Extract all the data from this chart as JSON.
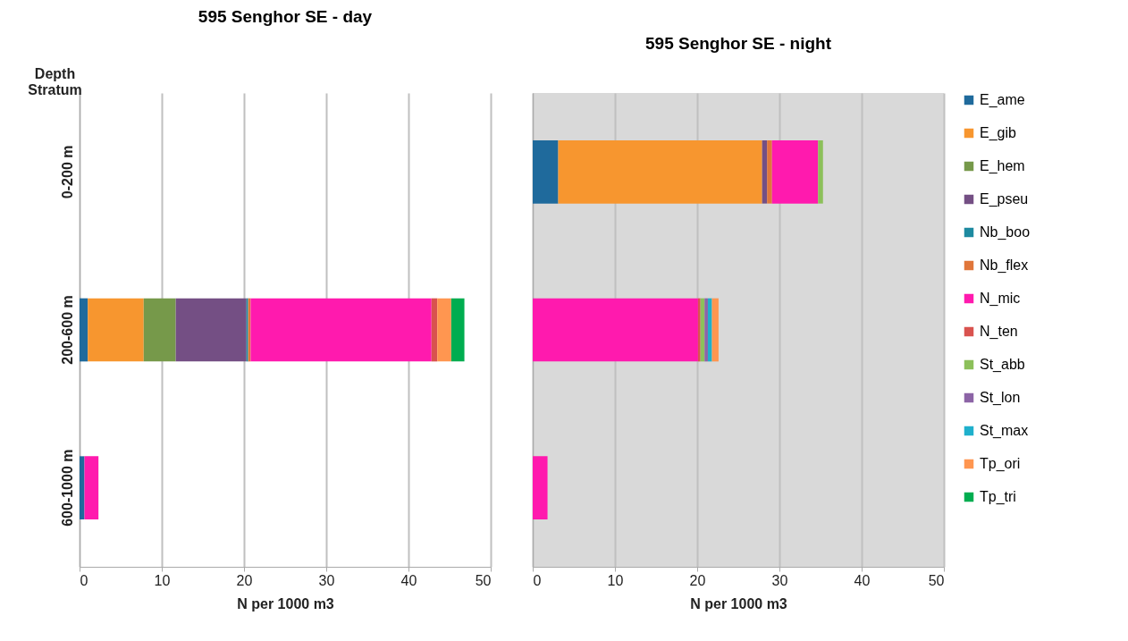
{
  "chart_data": [
    {
      "type": "bar",
      "orientation": "horizontal",
      "stacked": true,
      "title": "595 Senghor SE - day",
      "xlabel": "N per 1000 m3",
      "ylabel": "Depth Stratum",
      "categories": [
        "0-200 m",
        "200-600 m",
        "600-1000 m"
      ],
      "xlim": [
        0,
        50
      ],
      "xticks": [
        0,
        10,
        20,
        30,
        40,
        50
      ],
      "grid": "x",
      "series": [
        {
          "color": "#1f6a9c",
          "values": [
            null,
            1.0,
            0.6
          ]
        },
        {
          "color": "#f7962f",
          "values": [
            null,
            6.8,
            null
          ]
        },
        {
          "color": "#76994a",
          "values": [
            null,
            3.9,
            null
          ]
        },
        {
          "color": "#744f84",
          "values": [
            null,
            8.6,
            null
          ]
        },
        {
          "color": "#1d8aa0",
          "values": [
            null,
            0.2,
            null
          ]
        },
        {
          "color": "#e0763a",
          "values": [
            null,
            0.3,
            null
          ]
        },
        {
          "color": "#ff1aae",
          "values": [
            null,
            22.0,
            1.7
          ]
        },
        {
          "color": "#d9534f",
          "values": [
            null,
            0.7,
            null
          ]
        },
        {
          "color": "#ff9650",
          "values": [
            null,
            1.7,
            null
          ]
        },
        {
          "color": "#00ad50",
          "values": [
            null,
            1.6,
            null
          ]
        }
      ]
    },
    {
      "type": "bar",
      "orientation": "horizontal",
      "stacked": true,
      "title": "595 Senghor SE - night",
      "xlabel": "N per 1000 m3",
      "categories": [
        null,
        null,
        null
      ],
      "xlim": [
        0,
        50
      ],
      "xticks": [
        0,
        10,
        20,
        30,
        40,
        50
      ],
      "grid": "x",
      "legend": "right",
      "tick_labels": "x",
      "series": [
        {
          "name": "E_ame",
          "color": "#1f6a9c",
          "values": [
            3.1,
            null,
            null
          ]
        },
        {
          "name": "E_gib",
          "color": "#f7962f",
          "values": [
            24.8,
            null,
            null
          ]
        },
        {
          "name": "E_hem",
          "color": "#76994a",
          "values": [
            null,
            null,
            null
          ]
        },
        {
          "name": "E_pseu",
          "color": "#744f84",
          "values": [
            0.6,
            null,
            null
          ]
        },
        {
          "name": "Nb_boo",
          "color": "#1d8aa0",
          "values": [
            null,
            null,
            null
          ]
        },
        {
          "name": "Nb_flex",
          "color": "#e0763a",
          "values": [
            0.6,
            null,
            null
          ]
        },
        {
          "name": "N_mic",
          "color": "#ff1aae",
          "values": [
            5.6,
            20.1,
            1.8
          ]
        },
        {
          "name": "N_ten",
          "color": "#d9534f",
          "values": [
            null,
            0.3,
            null
          ]
        },
        {
          "name": "St_abb",
          "color": "#8cc05a",
          "values": [
            0.6,
            0.5,
            null
          ]
        },
        {
          "name": "St_lon",
          "color": "#8c64a6",
          "values": [
            null,
            0.4,
            null
          ]
        },
        {
          "name": "St_max",
          "color": "#1fb0cc",
          "values": [
            null,
            0.5,
            null
          ]
        },
        {
          "name": "Tp_ori",
          "color": "#ff9650",
          "values": [
            null,
            0.8,
            null
          ]
        },
        {
          "name": "Tp_tri",
          "color": "#00ad50",
          "values": [
            null,
            null,
            null
          ]
        }
      ]
    }
  ]
}
